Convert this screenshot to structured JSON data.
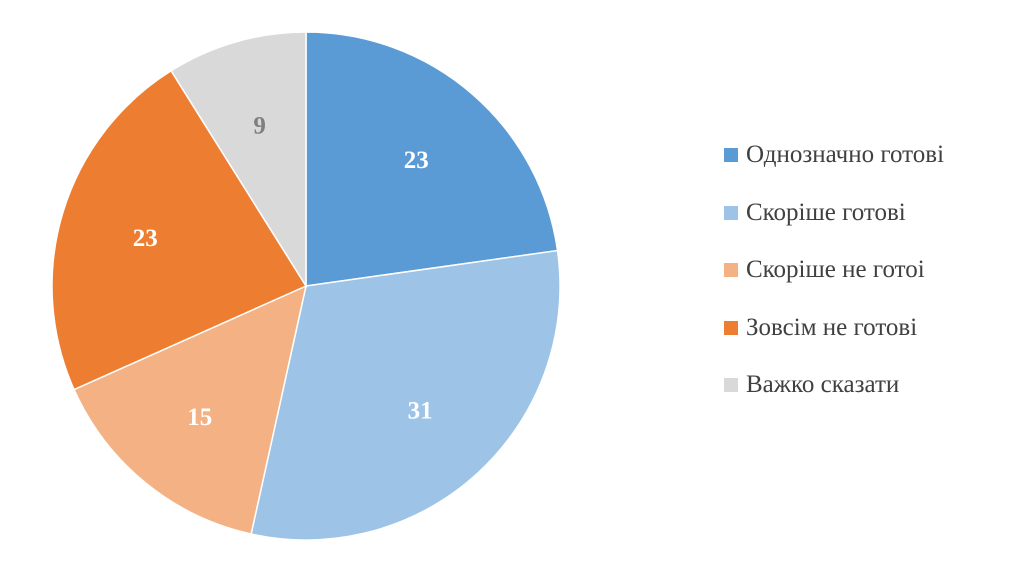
{
  "chart_data": {
    "type": "pie",
    "categories": [
      "Однозначно готові",
      "Скоріше готові",
      "Скоріше не готоі",
      "Зовсім не готові",
      "Важко сказати"
    ],
    "values": [
      23,
      31,
      15,
      23,
      9
    ],
    "colors": [
      "#5b9bd5",
      "#9dc3e6",
      "#f4b183",
      "#ed7d31",
      "#d9d9d9"
    ],
    "label_colors": [
      "#ffffff",
      "#ffffff",
      "#ffffff",
      "#ffffff",
      "#7f7f7f"
    ],
    "data_labels": [
      "23",
      "31",
      "15",
      "23",
      "9"
    ],
    "legend_position": "right",
    "start": "12 o'clock, clockwise"
  }
}
